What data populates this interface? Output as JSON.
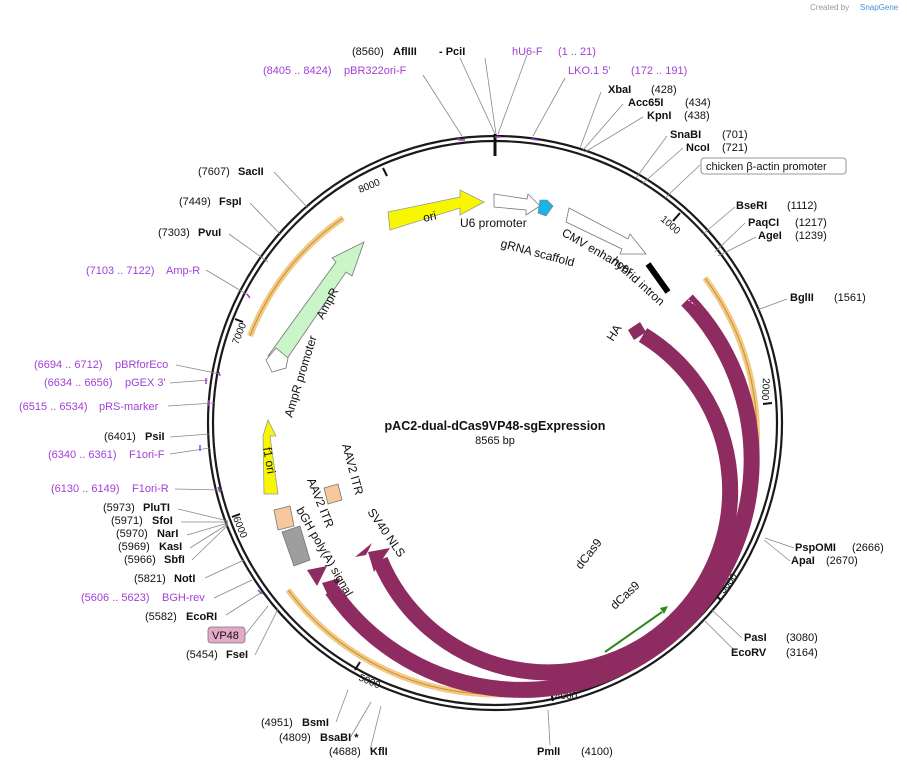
{
  "credit": {
    "prefix": "Created by",
    "brand": "SnapGene"
  },
  "title": "pAC2-dual-dCas9VP48-sgExpression",
  "length_label": "8565 bp",
  "colors": {
    "backbone": "#1a1a1a",
    "primer": "#a23fd6",
    "dcas9": "#8e2c62",
    "ori": "#f7f700",
    "ampr": "#c9f5c9",
    "orf_highlight": "#f2c987",
    "sgrna": "#1cb4e6",
    "hybrid_intron": "#000000",
    "aav_itr": "#f7c79e",
    "bgh": "#9e9e9e",
    "vp48_box": "#e2aac6",
    "green_orf": "#2a8a1a"
  },
  "ticks": [
    "1000",
    "2000",
    "3000",
    "4000",
    "5000",
    "6000",
    "7000",
    "8000"
  ],
  "enzymes": [
    {
      "pos": "(8560)",
      "name": "AflIII",
      "extra": "- PciI"
    },
    {
      "name": "XbaI",
      "pos": "(428)"
    },
    {
      "name": "Acc65I",
      "pos": "(434)"
    },
    {
      "name": "KpnI",
      "pos": "(438)"
    },
    {
      "name": "SnaBI",
      "pos": "(701)"
    },
    {
      "name": "NcoI",
      "pos": "(721)"
    },
    {
      "name": "BseRI",
      "pos": "(1112)"
    },
    {
      "name": "PaqCI",
      "pos": "(1217)"
    },
    {
      "name": "AgeI",
      "pos": "(1239)"
    },
    {
      "name": "BglII",
      "pos": "(1561)"
    },
    {
      "name": "PspOMI",
      "pos": "(2666)"
    },
    {
      "name": "ApaI",
      "pos": "(2670)"
    },
    {
      "name": "PasI",
      "pos": "(3080)"
    },
    {
      "name": "EcoRV",
      "pos": "(3164)"
    },
    {
      "name": "PmlI",
      "pos": "(4100)"
    },
    {
      "name": "KflI",
      "pos": "(4688)"
    },
    {
      "name": "BsaBI *",
      "pos": "(4809)"
    },
    {
      "name": "BsmI",
      "pos": "(4951)"
    },
    {
      "name": "FseI",
      "pos": "(5454)"
    },
    {
      "name": "EcoRI",
      "pos": "(5582)"
    },
    {
      "name": "NotI",
      "pos": "(5821)"
    },
    {
      "name": "SbfI",
      "pos": "(5966)"
    },
    {
      "name": "KasI",
      "pos": "(5969)"
    },
    {
      "name": "NarI",
      "pos": "(5970)"
    },
    {
      "name": "SfoI",
      "pos": "(5971)"
    },
    {
      "name": "PluTI",
      "pos": "(5973)"
    },
    {
      "name": "PsiI",
      "pos": "(6401)"
    },
    {
      "name": "PvuI",
      "pos": "(7303)"
    },
    {
      "name": "FspI",
      "pos": "(7449)"
    },
    {
      "name": "SacII",
      "pos": "(7607)"
    }
  ],
  "primers": [
    {
      "name": "hU6-F",
      "range": "(1 .. 21)"
    },
    {
      "name": "LKO.1 5'",
      "range": "(172 .. 191)"
    },
    {
      "name": "pBR322ori-F",
      "range": "(8405 .. 8424)"
    },
    {
      "name": "Amp-R",
      "range": "(7103 .. 7122)"
    },
    {
      "name": "pBRforEco",
      "range": "(6694 .. 6712)"
    },
    {
      "name": "pGEX 3'",
      "range": "(6634 .. 6656)"
    },
    {
      "name": "pRS-marker",
      "range": "(6515 .. 6534)"
    },
    {
      "name": "F1ori-F",
      "range": "(6340 .. 6361)"
    },
    {
      "name": "F1ori-R",
      "range": "(6130 .. 6149)"
    },
    {
      "name": "BGH-rev",
      "range": "(5606 .. 5623)"
    }
  ],
  "boxed_labels": {
    "promoter": "chicken β-actin promoter",
    "vp48": "VP48"
  },
  "features": {
    "ori": "ori",
    "u6_promoter": "U6 promoter",
    "grna_scaffold": "gRNA scaffold",
    "cmv_enhancer": "CMV enhancer",
    "hybrid_intron": "hybrid intron",
    "ha": "HA",
    "dcas9_inner": "dCas9",
    "dcas9_outer": "dCas9",
    "sv40_nls": "SV40 NLS",
    "aav2_itr_1": "AAV2 ITR",
    "aav2_itr_2": "AAV2 ITR",
    "bgh_polya": "bGH poly(A) signal",
    "f1_ori": "f1 ori",
    "ampr": "AmpR",
    "ampr_promoter": "AmpR promoter"
  }
}
